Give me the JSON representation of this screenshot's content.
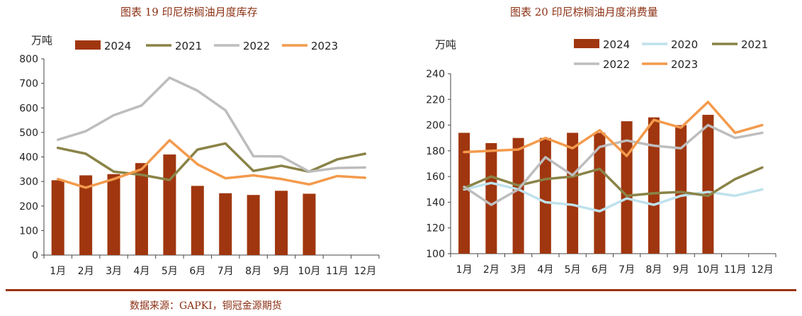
{
  "charts_header": {
    "left_title": "图表 19  印尼棕榈油月度库存",
    "right_title": "图表 20  印尼棕榈油月度消费量"
  },
  "footer": {
    "source": "数据来源：GAPKI，铜冠金源期货"
  },
  "colors": {
    "2024": "#a0360f",
    "2020": "#bfe1ec",
    "2021": "#8a8347",
    "2022": "#bdbdbd",
    "2023": "#f39a4c",
    "axis": "#444444",
    "accent": "#9a3412"
  },
  "chart_data": [
    {
      "type": "bar",
      "title": "印尼棕榈油月度库存",
      "ylabel": "万吨",
      "ylim": [
        0,
        800
      ],
      "yticks": [
        0,
        100,
        200,
        300,
        400,
        500,
        600,
        700,
        800
      ],
      "categories": [
        "1月",
        "2月",
        "3月",
        "4月",
        "5月",
        "6月",
        "7月",
        "8月",
        "9月",
        "10月",
        "11月",
        "12月"
      ],
      "bar_series": {
        "name": "2024",
        "values": [
          305,
          325,
          330,
          375,
          410,
          282,
          252,
          245,
          262,
          250,
          null,
          null
        ]
      },
      "line_series": [
        {
          "name": "2021",
          "values": [
            437,
            413,
            340,
            327,
            306,
            430,
            455,
            343,
            364,
            340,
            390,
            413
          ]
        },
        {
          "name": "2022",
          "values": [
            470,
            505,
            570,
            610,
            723,
            670,
            590,
            403,
            402,
            340,
            355,
            357
          ]
        },
        {
          "name": "2023",
          "values": [
            310,
            275,
            310,
            350,
            468,
            370,
            313,
            325,
            310,
            288,
            322,
            315
          ]
        }
      ],
      "legend": [
        "2024",
        "2021",
        "2022",
        "2023"
      ],
      "legend_position": "top"
    },
    {
      "type": "bar",
      "title": "印尼棕榈油月度消费量",
      "ylabel": "万吨",
      "ylim": [
        100,
        240
      ],
      "yticks": [
        100,
        120,
        140,
        160,
        180,
        200,
        220,
        240
      ],
      "categories": [
        "1月",
        "2月",
        "3月",
        "4月",
        "5月",
        "6月",
        "7月",
        "8月",
        "9月",
        "10月",
        "11月",
        "12月"
      ],
      "bar_series": {
        "name": "2024",
        "values": [
          194,
          186,
          190,
          190,
          194,
          194,
          203,
          206,
          200,
          208,
          null,
          null
        ]
      },
      "line_series": [
        {
          "name": "2020",
          "values": [
            150,
            155,
            150,
            140,
            138,
            133,
            143,
            138,
            145,
            148,
            145,
            150
          ]
        },
        {
          "name": "2021",
          "values": [
            151,
            160,
            153,
            158,
            160,
            166,
            145,
            147,
            148,
            145,
            158,
            167
          ]
        },
        {
          "name": "2022",
          "values": [
            152,
            138,
            150,
            175,
            161,
            183,
            188,
            184,
            182,
            200,
            190,
            194
          ]
        },
        {
          "name": "2023",
          "values": [
            179,
            180,
            181,
            190,
            182,
            196,
            176,
            204,
            198,
            218,
            194,
            200
          ]
        }
      ],
      "legend": [
        "2024",
        "2020",
        "2021",
        "2022",
        "2023"
      ],
      "legend_position": "top"
    }
  ]
}
